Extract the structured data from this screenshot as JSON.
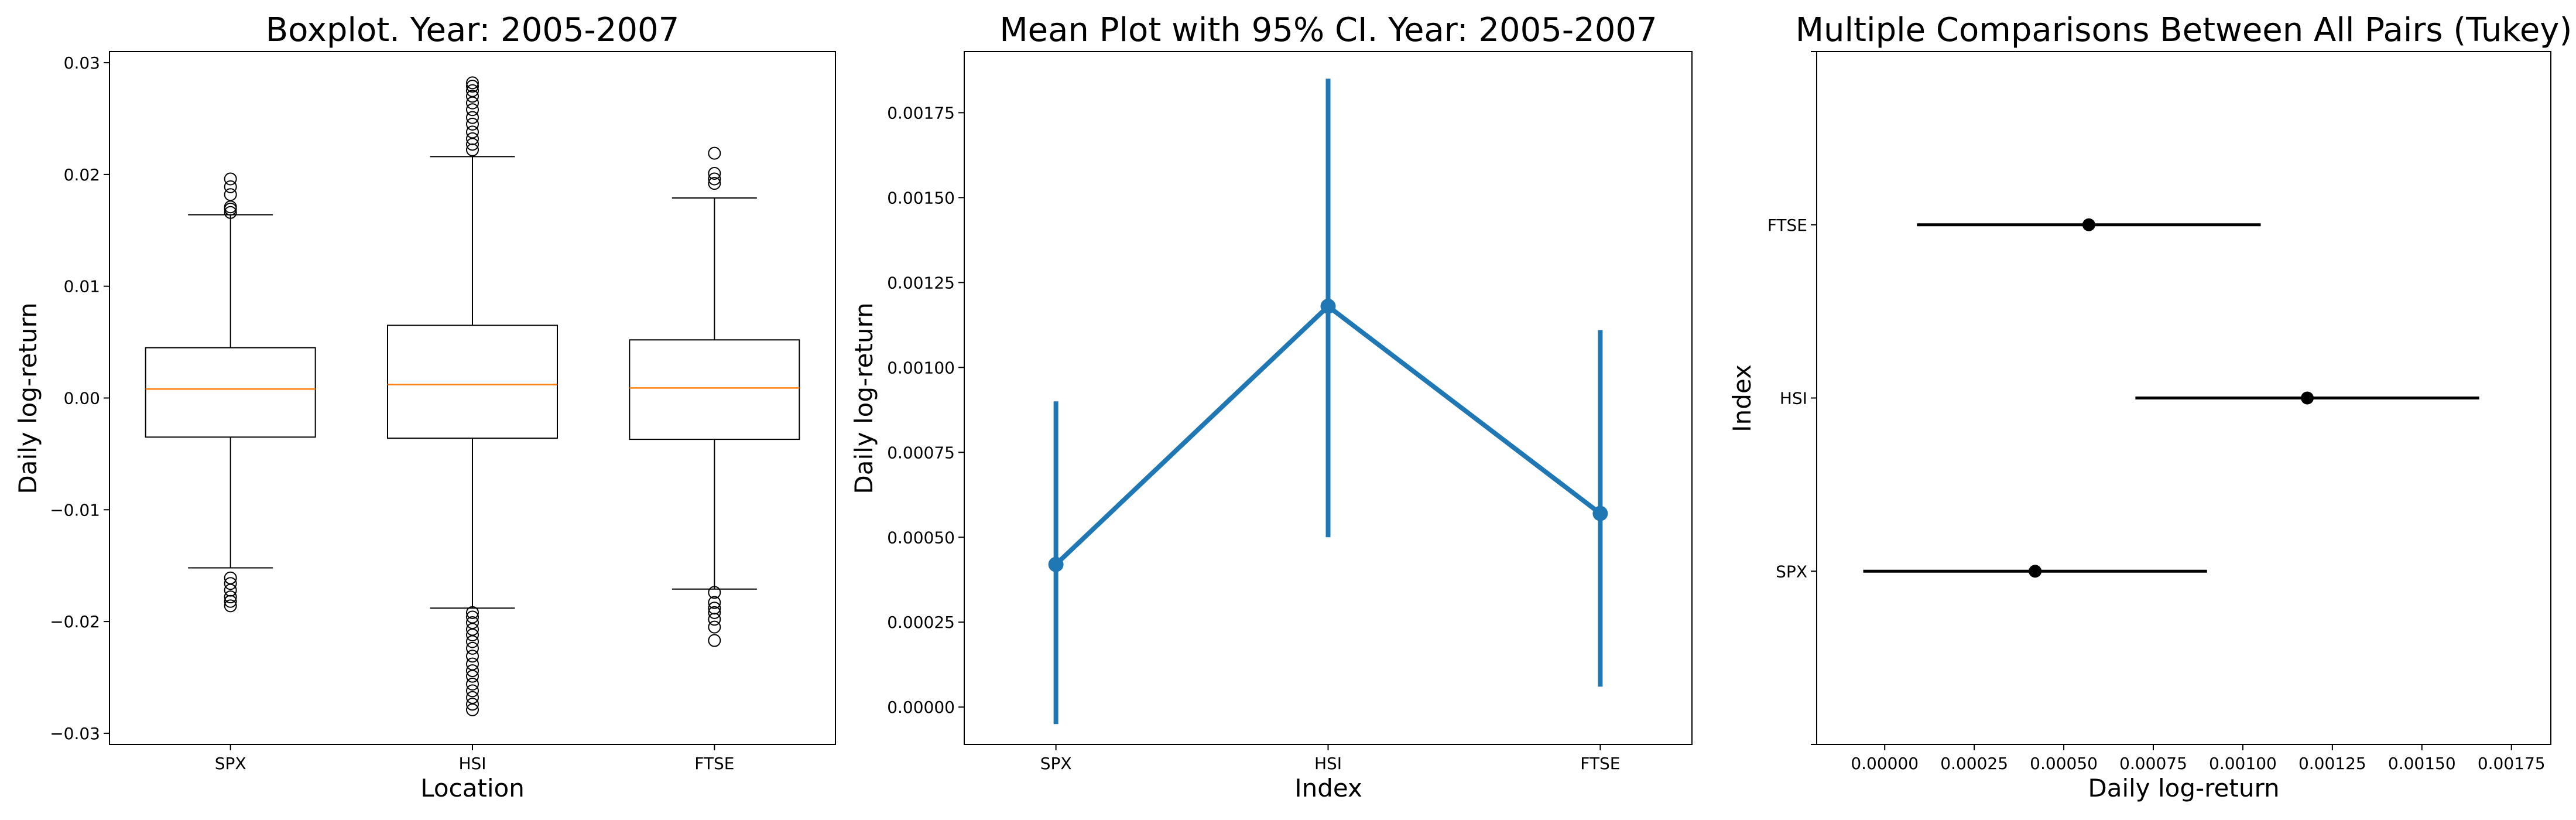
{
  "chart_data": [
    {
      "type": "boxplot",
      "title": "Boxplot. Year: 2005-2007",
      "xlabel": "Location",
      "ylabel": "Daily log-return",
      "ylim": [
        -0.031,
        0.031
      ],
      "yticks": [
        -0.03,
        -0.02,
        -0.01,
        0.0,
        0.01,
        0.02,
        0.03
      ],
      "ytick_labels": [
        "−0.03",
        "−0.02",
        "−0.01",
        "0.00",
        "0.01",
        "0.02",
        "0.03"
      ],
      "categories": [
        "SPX",
        "HSI",
        "FTSE"
      ],
      "median_color": "#ff7f0e",
      "boxes": [
        {
          "name": "SPX",
          "q1": -0.0035,
          "median": 0.0008,
          "q3": 0.0045,
          "whisker_low": -0.0152,
          "whisker_high": 0.0164,
          "outliers_high": [
            0.0166,
            0.0169,
            0.0171,
            0.0182,
            0.0189,
            0.0196
          ],
          "outliers_low": [
            -0.0161,
            -0.0166,
            -0.0172,
            -0.0178,
            -0.0182,
            -0.0186
          ]
        },
        {
          "name": "HSI",
          "q1": -0.0036,
          "median": 0.0012,
          "q3": 0.0065,
          "whisker_low": -0.0188,
          "whisker_high": 0.0216,
          "outliers_high": [
            0.0222,
            0.0227,
            0.0232,
            0.0238,
            0.0245,
            0.0251,
            0.0258,
            0.0264,
            0.027,
            0.0275,
            0.0279,
            0.0282
          ],
          "outliers_low": [
            -0.0192,
            -0.0196,
            -0.0201,
            -0.0207,
            -0.0212,
            -0.0218,
            -0.0224,
            -0.0231,
            -0.0238,
            -0.0244,
            -0.0249,
            -0.0256,
            -0.0262,
            -0.0268,
            -0.0274,
            -0.0279
          ]
        },
        {
          "name": "FTSE",
          "q1": -0.0037,
          "median": 0.0009,
          "q3": 0.0052,
          "whisker_low": -0.0171,
          "whisker_high": 0.0179,
          "outliers_high": [
            0.0192,
            0.0196,
            0.0201,
            0.0219
          ],
          "outliers_low": [
            -0.0174,
            -0.0183,
            -0.0188,
            -0.0192,
            -0.0198,
            -0.0205,
            -0.0217
          ]
        }
      ]
    },
    {
      "type": "line",
      "title": "Mean Plot with 95% CI. Year: 2005-2007",
      "xlabel": "Index",
      "ylabel": "Daily log-return",
      "ylim": [
        -0.00011,
        0.00193
      ],
      "yticks": [
        0.0,
        0.00025,
        0.0005,
        0.00075,
        0.001,
        0.00125,
        0.0015,
        0.00175
      ],
      "ytick_labels": [
        "0.00000",
        "0.00025",
        "0.00050",
        "0.00075",
        "0.00100",
        "0.00125",
        "0.00150",
        "0.00175"
      ],
      "categories": [
        "SPX",
        "HSI",
        "FTSE"
      ],
      "color": "#1f77b4",
      "means": [
        0.00042,
        0.00118,
        0.00057
      ],
      "ci_low": [
        -5e-05,
        0.0005,
        6e-05
      ],
      "ci_high": [
        0.0009,
        0.00185,
        0.00111
      ]
    },
    {
      "type": "errorbar",
      "title": "Multiple Comparisons Between All Pairs (Tukey)",
      "xlabel": "Daily log-return",
      "ylabel": "Index",
      "xlim": [
        -0.00019,
        0.00186
      ],
      "xticks": [
        0.0,
        0.00025,
        0.0005,
        0.00075,
        0.001,
        0.00125,
        0.0015,
        0.00175
      ],
      "xtick_labels": [
        "0.00000",
        "0.00025",
        "0.00050",
        "0.00075",
        "0.00100",
        "0.00125",
        "0.00150",
        "0.00175"
      ],
      "categories": [
        "FTSE",
        "HSI",
        "SPX"
      ],
      "color": "#000000",
      "means": [
        0.00057,
        0.00118,
        0.00042
      ],
      "ci_low": [
        9e-05,
        0.0007,
        -6e-05
      ],
      "ci_high": [
        0.00105,
        0.00166,
        0.0009
      ]
    }
  ]
}
